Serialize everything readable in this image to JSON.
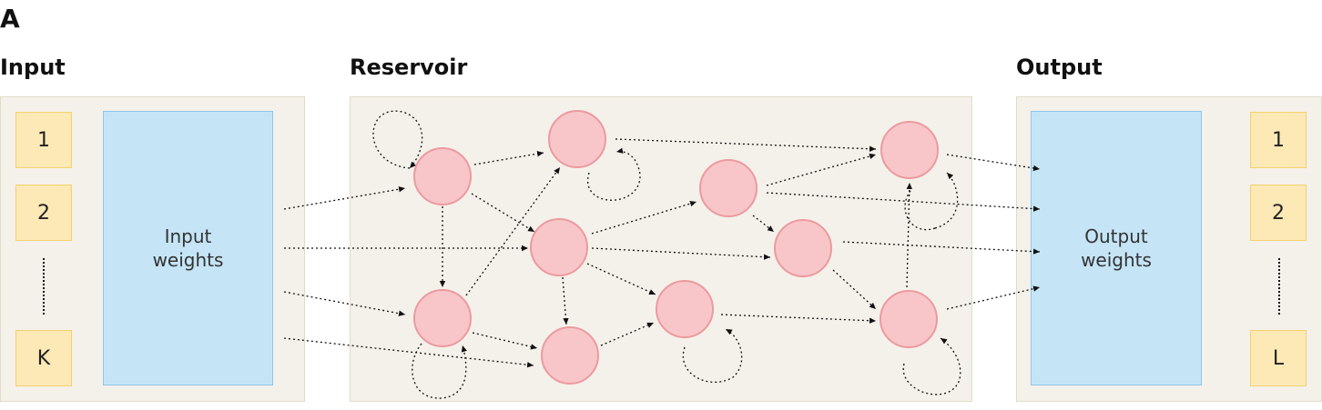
{
  "figure_label": "A",
  "input": {
    "title": "Input",
    "cells": [
      "1",
      "2",
      "K"
    ],
    "weights_label": "Input\nweights"
  },
  "reservoir": {
    "title": "Reservoir"
  },
  "output": {
    "title": "Output",
    "cells": [
      "1",
      "2",
      "L"
    ],
    "weights_label": "Output\nweights"
  },
  "colors": {
    "panel_bg": "#f4f1ea",
    "cell_fill": "#fde9b6",
    "weights_fill": "#c5e5f6",
    "neuron_fill": "#f8c6c9",
    "neuron_stroke": "#ec9a9f"
  }
}
